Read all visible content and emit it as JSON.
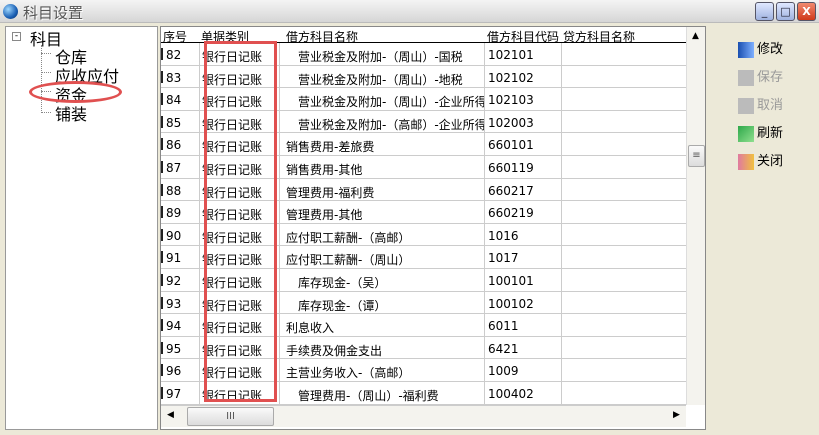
{
  "window": {
    "title": "科目设置",
    "minimize": "_",
    "maximize": "□",
    "close": "X"
  },
  "tree": {
    "root": "科目",
    "root_expander": "-",
    "children": [
      "仓库",
      "应收应付",
      "资金",
      "铺装"
    ],
    "highlighted": "资金"
  },
  "grid": {
    "columns": [
      "序号",
      "单据类别",
      "借方科目名称",
      "借方科目代码",
      "贷方科目名称"
    ],
    "rows": [
      {
        "no": "82",
        "type": "银行日记账",
        "debit_name": "营业税金及附加-（周山）-国税",
        "debit_code": "102101",
        "credit_name": ""
      },
      {
        "no": "83",
        "type": "银行日记账",
        "debit_name": "营业税金及附加-（周山）-地税",
        "debit_code": "102102",
        "credit_name": ""
      },
      {
        "no": "84",
        "type": "银行日记账",
        "debit_name": "营业税金及附加-（周山）-企业所得税",
        "debit_code": "102103",
        "credit_name": ""
      },
      {
        "no": "85",
        "type": "银行日记账",
        "debit_name": "营业税金及附加-（高邮）-企业所得税",
        "debit_code": "102003",
        "credit_name": ""
      },
      {
        "no": "86",
        "type": "银行日记账",
        "debit_name": "销售费用-差旅费",
        "debit_code": "660101",
        "credit_name": ""
      },
      {
        "no": "87",
        "type": "银行日记账",
        "debit_name": "销售费用-其他",
        "debit_code": "660119",
        "credit_name": ""
      },
      {
        "no": "88",
        "type": "银行日记账",
        "debit_name": "管理费用-福利费",
        "debit_code": "660217",
        "credit_name": ""
      },
      {
        "no": "89",
        "type": "银行日记账",
        "debit_name": "管理费用-其他",
        "debit_code": "660219",
        "credit_name": ""
      },
      {
        "no": "90",
        "type": "银行日记账",
        "debit_name": "应付职工薪酬-（高邮）",
        "debit_code": "1016",
        "credit_name": ""
      },
      {
        "no": "91",
        "type": "银行日记账",
        "debit_name": "应付职工薪酬-（周山）",
        "debit_code": "1017",
        "credit_name": ""
      },
      {
        "no": "92",
        "type": "银行日记账",
        "debit_name": "库存现金-（吴）",
        "debit_code": "100101",
        "credit_name": ""
      },
      {
        "no": "93",
        "type": "银行日记账",
        "debit_name": "库存现金-（谭）",
        "debit_code": "100102",
        "credit_name": ""
      },
      {
        "no": "94",
        "type": "银行日记账",
        "debit_name": "利息收入",
        "debit_code": "6011",
        "credit_name": ""
      },
      {
        "no": "95",
        "type": "银行日记账",
        "debit_name": "手续费及佣金支出",
        "debit_code": "6421",
        "credit_name": ""
      },
      {
        "no": "96",
        "type": "银行日记账",
        "debit_name": "主营业务收入-（高邮）",
        "debit_code": "1009",
        "credit_name": ""
      },
      {
        "no": "97",
        "type": "银行日记账",
        "debit_name": "管理费用-（周山）-福利费",
        "debit_code": "100402",
        "credit_name": ""
      }
    ],
    "indented_rows": [
      "82",
      "83",
      "84",
      "85",
      "92",
      "93",
      "97"
    ]
  },
  "actions": [
    {
      "label": "修改",
      "icon": "edit-icon",
      "enabled": true
    },
    {
      "label": "保存",
      "icon": "save-icon",
      "enabled": false
    },
    {
      "label": "取消",
      "icon": "cancel-icon",
      "enabled": false
    },
    {
      "label": "刷新",
      "icon": "refresh-icon",
      "enabled": true
    },
    {
      "label": "关闭",
      "icon": "exit-icon",
      "enabled": true
    }
  ],
  "colors": {
    "annotation": "#e05050"
  }
}
